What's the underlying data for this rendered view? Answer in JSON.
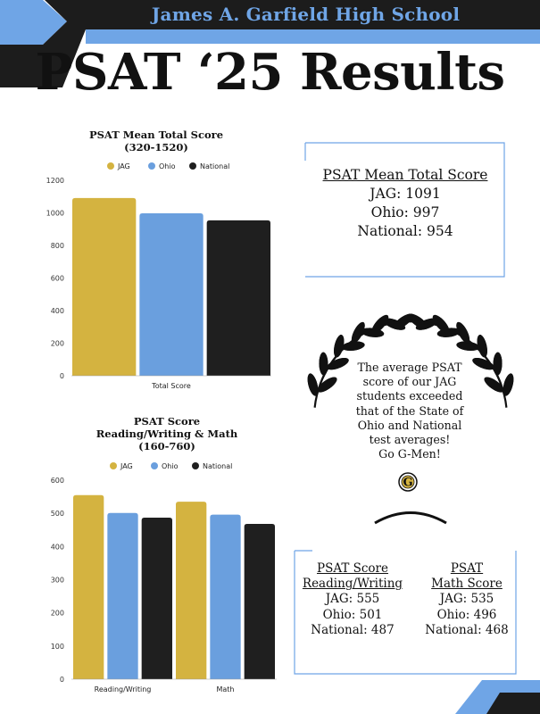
{
  "header": {
    "school": "James A. Garfield High School",
    "title": "PSAT ‘25 Results"
  },
  "colors": {
    "jag": "#d4b340",
    "ohio": "#6a9fde",
    "national": "#1f1f1f",
    "banner_dark": "#1c1c1c",
    "banner_blue": "#6fa5e6"
  },
  "chart_data": [
    {
      "type": "bar",
      "title": "PSAT Mean Total Score",
      "subtitle": "(320-1520)",
      "categories": [
        "Total Score"
      ],
      "series": [
        {
          "name": "JAG",
          "values": [
            1091
          ]
        },
        {
          "name": "Ohio",
          "values": [
            997
          ]
        },
        {
          "name": "National",
          "values": [
            954
          ]
        }
      ],
      "ylim": [
        0,
        1200
      ],
      "yticks": [
        0,
        200,
        400,
        600,
        800,
        1000,
        1200
      ],
      "legend": "top",
      "grid": false
    },
    {
      "type": "bar",
      "title": "PSAT Score",
      "subtitle": "Reading/Writing & Math",
      "subtitle2": "(160-760)",
      "categories": [
        "Reading/Writing",
        "Math"
      ],
      "series": [
        {
          "name": "JAG",
          "values": [
            555,
            535
          ]
        },
        {
          "name": "Ohio",
          "values": [
            501,
            496
          ]
        },
        {
          "name": "National",
          "values": [
            487,
            468
          ]
        }
      ],
      "ylim": [
        0,
        600
      ],
      "yticks": [
        0,
        100,
        200,
        300,
        400,
        500,
        600
      ],
      "legend": "top",
      "grid": false
    }
  ],
  "summary_total": {
    "heading": "PSAT Mean Total Score",
    "lines": [
      "JAG: 1091",
      "Ohio: 997",
      "National: 954"
    ]
  },
  "laurel": {
    "lines": [
      "The average PSAT",
      "score of our JAG",
      "students exceeded",
      "that of the State of",
      "Ohio and National",
      "test averages!",
      "Go G-Men!"
    ],
    "logo": "G"
  },
  "summary_sections": {
    "rw": {
      "heading": [
        "PSAT Score",
        "Reading/Writing"
      ],
      "lines": [
        "JAG: 555",
        "Ohio: 501",
        "National: 487"
      ]
    },
    "math": {
      "heading": [
        "PSAT",
        "Math Score"
      ],
      "lines": [
        "JAG: 535",
        "Ohio: 496",
        "National: 468"
      ]
    }
  }
}
